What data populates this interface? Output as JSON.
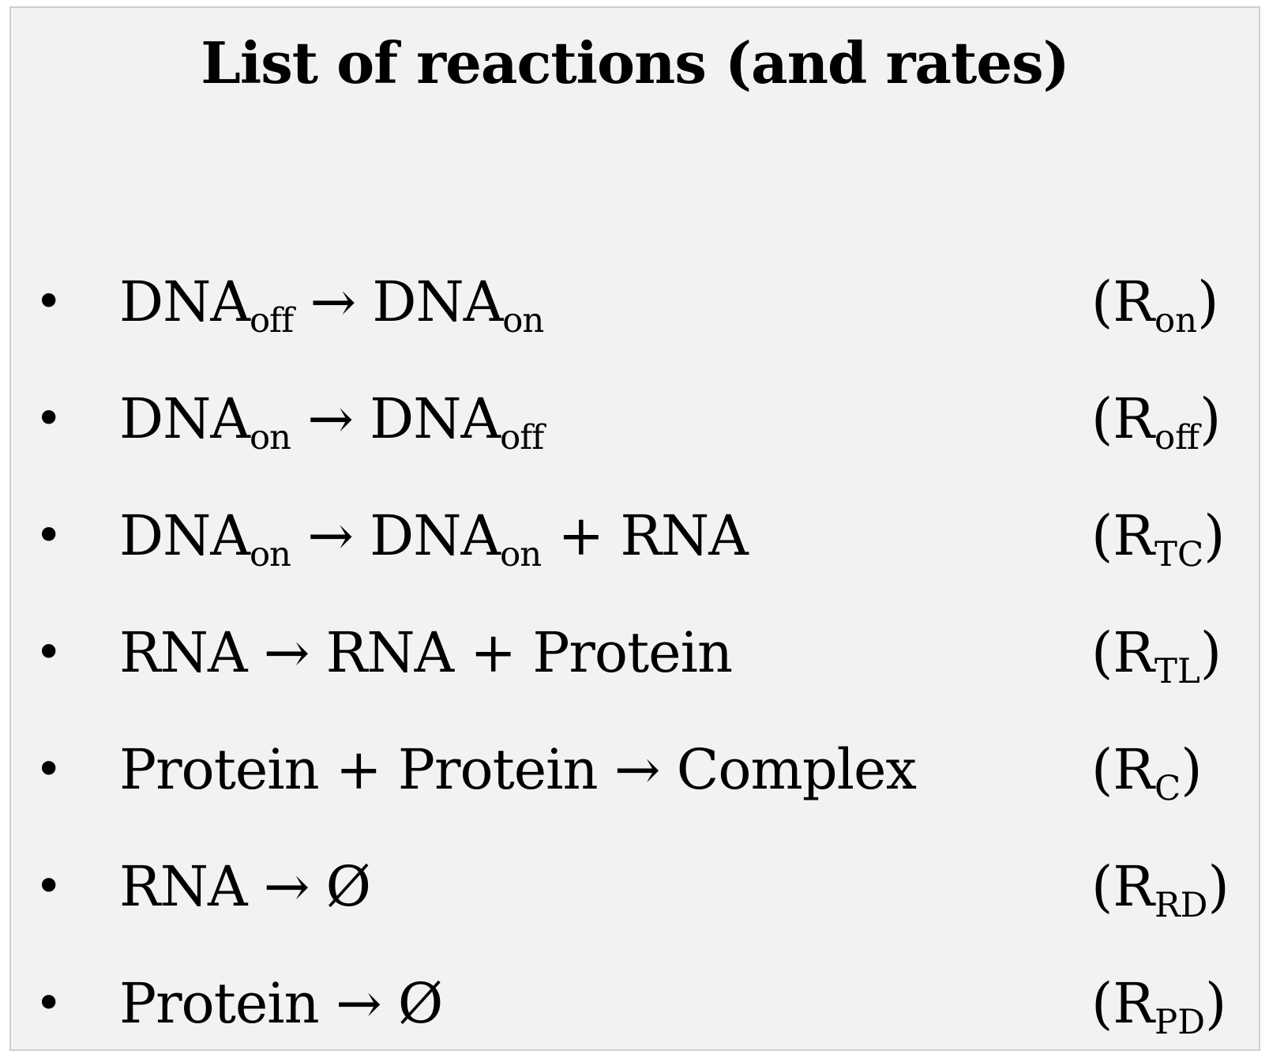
{
  "title": "List of reactions (and rates)",
  "bullet": "•",
  "reactions": [
    {
      "equation": [
        {
          "text": "DNA"
        },
        {
          "sub": "off"
        },
        {
          "text": " → DNA"
        },
        {
          "sub": "on"
        }
      ],
      "rate": [
        {
          "text": "(R"
        },
        {
          "sub": "on"
        },
        {
          "text": ")"
        }
      ]
    },
    {
      "equation": [
        {
          "text": "DNA"
        },
        {
          "sub": "on"
        },
        {
          "text": " → DNA"
        },
        {
          "sub": "off"
        }
      ],
      "rate": [
        {
          "text": "(R"
        },
        {
          "sub": "off"
        },
        {
          "text": ")"
        }
      ]
    },
    {
      "equation": [
        {
          "text": "DNA"
        },
        {
          "sub": "on"
        },
        {
          "text": " → DNA"
        },
        {
          "sub": "on"
        },
        {
          "text": " + RNA"
        }
      ],
      "rate": [
        {
          "text": "(R"
        },
        {
          "sub": "TC"
        },
        {
          "text": ")"
        }
      ]
    },
    {
      "equation": [
        {
          "text": "RNA → RNA + Protein"
        }
      ],
      "rate": [
        {
          "text": "(R"
        },
        {
          "sub": "TL"
        },
        {
          "text": ")"
        }
      ]
    },
    {
      "equation": [
        {
          "text": "Protein + Protein → Complex"
        }
      ],
      "rate": [
        {
          "text": "(R"
        },
        {
          "sub": "C"
        },
        {
          "text": ")"
        }
      ]
    },
    {
      "equation": [
        {
          "text": "RNA → Ø"
        }
      ],
      "rate": [
        {
          "text": "(R"
        },
        {
          "sub": "RD"
        },
        {
          "text": ")"
        }
      ]
    },
    {
      "equation": [
        {
          "text": "Protein → Ø"
        }
      ],
      "rate": [
        {
          "text": "(R"
        },
        {
          "sub": "PD"
        },
        {
          "text": ")"
        }
      ]
    }
  ]
}
